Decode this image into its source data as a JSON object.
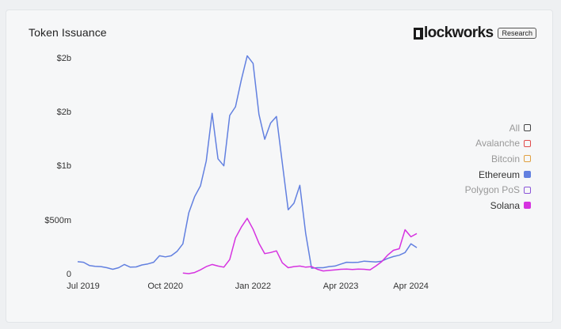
{
  "header": {
    "title": "Token Issuance",
    "brand": "lockworks",
    "brand_badge": "Research"
  },
  "legend": [
    {
      "label": "All",
      "color": "#444444",
      "active": false,
      "filled": false
    },
    {
      "label": "Avalanche",
      "color": "#e04a4a",
      "active": false,
      "filled": false
    },
    {
      "label": "Bitcoin",
      "color": "#e0a040",
      "active": false,
      "filled": false
    },
    {
      "label": "Ethereum",
      "color": "#6280e0",
      "active": true,
      "filled": true
    },
    {
      "label": "Polygon PoS",
      "color": "#8a55d8",
      "active": false,
      "filled": false
    },
    {
      "label": "Solana",
      "color": "#d633e0",
      "active": true,
      "filled": true
    }
  ],
  "chart_data": {
    "type": "line",
    "title": "Token Issuance",
    "xlabel": "",
    "ylabel": "",
    "x_ticks": [
      "Jul 2019",
      "Oct 2020",
      "Jan 2022",
      "Apr 2023",
      "Apr 2024"
    ],
    "y_ticks": [
      "0",
      "$500m",
      "$1b",
      "$2b",
      "$2b"
    ],
    "ylim": [
      0,
      2000000000
    ],
    "x": [
      "2019-07",
      "2019-08",
      "2019-09",
      "2019-10",
      "2019-11",
      "2019-12",
      "2020-01",
      "2020-02",
      "2020-03",
      "2020-04",
      "2020-05",
      "2020-06",
      "2020-07",
      "2020-08",
      "2020-09",
      "2020-10",
      "2020-11",
      "2020-12",
      "2021-01",
      "2021-02",
      "2021-03",
      "2021-04",
      "2021-05",
      "2021-06",
      "2021-07",
      "2021-08",
      "2021-09",
      "2021-10",
      "2021-11",
      "2021-12",
      "2022-01",
      "2022-02",
      "2022-03",
      "2022-04",
      "2022-05",
      "2022-06",
      "2022-07",
      "2022-08",
      "2022-09",
      "2022-10",
      "2022-11",
      "2022-12",
      "2023-01",
      "2023-02",
      "2023-03",
      "2023-04",
      "2023-05",
      "2023-06",
      "2023-07",
      "2023-08",
      "2023-09",
      "2023-10",
      "2023-11",
      "2023-12",
      "2024-01",
      "2024-02",
      "2024-03",
      "2024-04",
      "2024-05"
    ],
    "series": [
      {
        "name": "Ethereum",
        "color": "#6280e0",
        "values": [
          110000000,
          105000000,
          75000000,
          68000000,
          65000000,
          55000000,
          40000000,
          55000000,
          85000000,
          60000000,
          62000000,
          80000000,
          90000000,
          105000000,
          165000000,
          155000000,
          165000000,
          205000000,
          275000000,
          560000000,
          710000000,
          810000000,
          1040000000,
          1480000000,
          1060000000,
          995000000,
          1460000000,
          1540000000,
          1790000000,
          2010000000,
          1940000000,
          1470000000,
          1240000000,
          1390000000,
          1450000000,
          1020000000,
          590000000,
          650000000,
          815000000,
          370000000,
          50000000,
          55000000,
          55000000,
          65000000,
          70000000,
          88000000,
          105000000,
          103000000,
          105000000,
          115000000,
          112000000,
          108000000,
          115000000,
          140000000,
          158000000,
          170000000,
          195000000,
          275000000,
          240000000
        ]
      },
      {
        "name": "Solana",
        "color": "#d633e0",
        "values": [
          null,
          null,
          null,
          null,
          null,
          null,
          null,
          null,
          null,
          null,
          null,
          null,
          null,
          null,
          null,
          null,
          null,
          null,
          5000000,
          0,
          10000000,
          35000000,
          65000000,
          85000000,
          70000000,
          60000000,
          130000000,
          330000000,
          430000000,
          510000000,
          410000000,
          280000000,
          185000000,
          195000000,
          210000000,
          100000000,
          55000000,
          65000000,
          70000000,
          60000000,
          65000000,
          40000000,
          25000000,
          30000000,
          35000000,
          40000000,
          42000000,
          38000000,
          42000000,
          40000000,
          35000000,
          70000000,
          110000000,
          170000000,
          215000000,
          230000000,
          405000000,
          340000000,
          370000000
        ]
      }
    ]
  }
}
